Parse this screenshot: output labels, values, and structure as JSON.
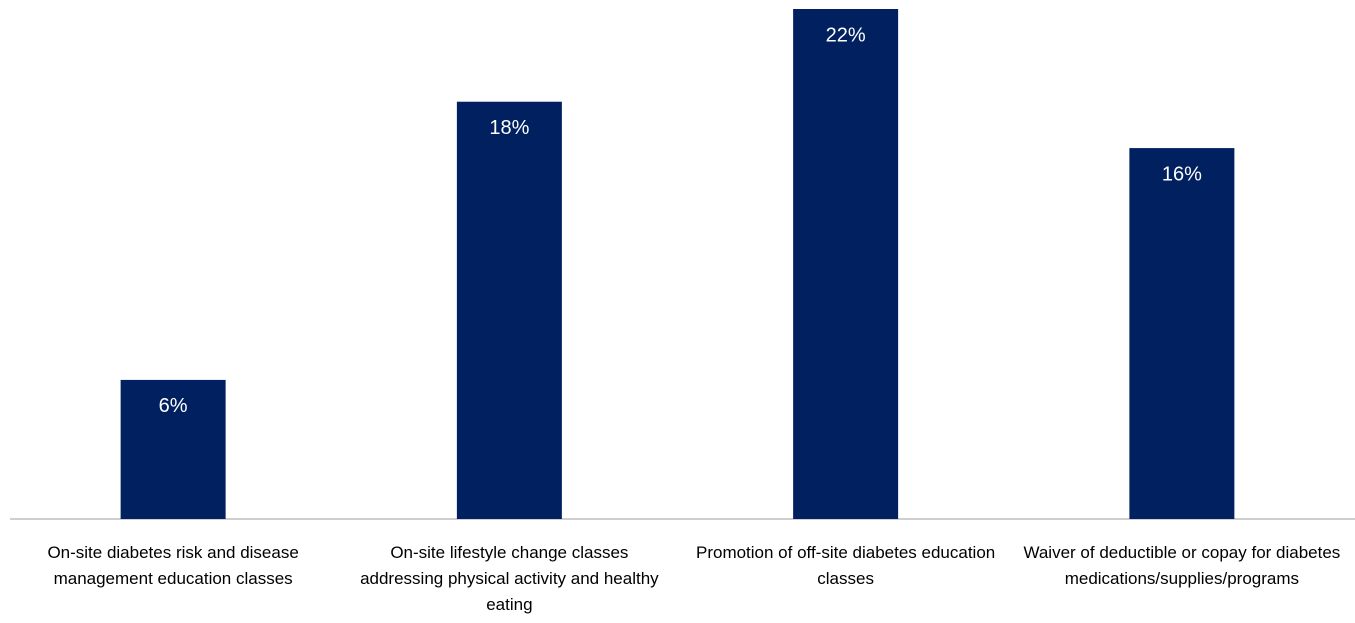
{
  "chart_data": {
    "type": "bar",
    "categories": [
      "On-site diabetes risk and disease management education classes",
      "On-site lifestyle change classes addressing physical activity and healthy eating",
      "Promotion of off-site diabetes education classes",
      "Waiver of deductible or copay for diabetes medications/supplies/programs"
    ],
    "values": [
      6,
      18,
      22,
      16
    ],
    "value_labels": [
      "6%",
      "18%",
      "22%",
      "16%"
    ],
    "color": "#002060"
  }
}
